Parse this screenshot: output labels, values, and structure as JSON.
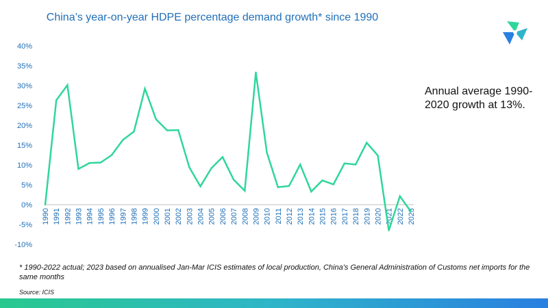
{
  "chart_data": {
    "type": "line",
    "title": "China’s year-on-year HDPE percentage demand growth* since 1990",
    "xlabel": "",
    "ylabel": "",
    "ylim": [
      -10,
      40
    ],
    "y_ticks": [
      "40%",
      "35%",
      "30%",
      "25%",
      "20%",
      "15%",
      "10%",
      "5%",
      "0%",
      "-5%",
      "-10%"
    ],
    "grid": false,
    "x": [
      "1990",
      "1991",
      "1992",
      "1993",
      "1994",
      "1995",
      "1996",
      "1997",
      "1998",
      "1999",
      "2000",
      "2001",
      "2002",
      "2003",
      "2004",
      "2005",
      "2006",
      "2007",
      "2008",
      "2009",
      "2010",
      "2011",
      "2012",
      "2013",
      "2014",
      "2015",
      "2016",
      "2017",
      "2018",
      "2019",
      "2020",
      "2021",
      "2022",
      "2023"
    ],
    "series": [
      {
        "values": [
          0,
          26.3,
          30.1,
          9.0,
          10.5,
          10.6,
          12.5,
          16.3,
          18.4,
          29.2,
          21.5,
          18.7,
          18.8,
          9.4,
          4.6,
          9.2,
          12.0,
          6.3,
          3.5,
          33.3,
          13.1,
          4.4,
          4.7,
          10.1,
          3.3,
          6.1,
          5.1,
          10.4,
          10.1,
          15.6,
          12.4,
          -6.5,
          2.1,
          -1.8
        ],
        "color": "#2fd69a"
      }
    ]
  },
  "annotation": "Annual average 1990-2020 growth at 13%.",
  "footnote": "* 1990-2022 actual; 2023 based on annualised Jan-Mar ICIS estimates of  local production, China’s General Administration of Customs net imports for the same months",
  "source": "Source: ICIS",
  "colors": {
    "title": "#1f6fb8",
    "tick": "#1f6fb8",
    "line": "#2fd69a",
    "axis": "#bfbfbf"
  },
  "logo_icon": "pinwheel-logo-icon"
}
